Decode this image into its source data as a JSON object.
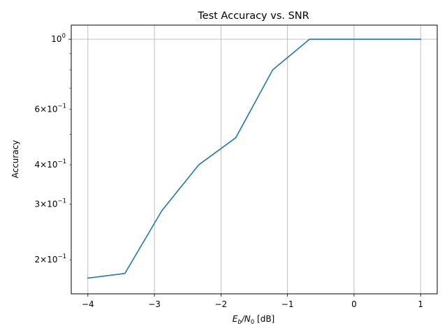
{
  "chart_data": {
    "type": "line",
    "title": "Test Accuracy vs. SNR",
    "xlabel": {
      "main": "E",
      "sub1": "b",
      "mid": "/N",
      "sub2": "0",
      "tail": " [dB]"
    },
    "ylabel": "Accuracy",
    "xscale": "linear",
    "yscale": "log",
    "xlim": [
      -4.25,
      1.25
    ],
    "ylim": [
      0.156,
      1.108
    ],
    "grid": "x-major-vertical, y-major-horizontal",
    "xticks": [
      {
        "value": -4,
        "label": "−4"
      },
      {
        "value": -3,
        "label": "−3"
      },
      {
        "value": -2,
        "label": "−2"
      },
      {
        "value": -1,
        "label": "−1"
      },
      {
        "value": 0,
        "label": "0"
      },
      {
        "value": 1,
        "label": "1"
      }
    ],
    "yticks_major": [
      {
        "value": 1.0,
        "base": "10",
        "exp": "0",
        "coef": ""
      }
    ],
    "yticks_minor_labeled": [
      {
        "value": 0.6,
        "coef": "6",
        "base": "10",
        "exp": "−1"
      },
      {
        "value": 0.4,
        "coef": "4",
        "base": "10",
        "exp": "−1"
      },
      {
        "value": 0.3,
        "coef": "3",
        "base": "10",
        "exp": "−1"
      },
      {
        "value": 0.2,
        "coef": "2",
        "base": "10",
        "exp": "−1"
      }
    ],
    "yticks_minor_unlabeled": [
      0.5,
      0.7,
      0.8,
      0.9
    ],
    "series": [
      {
        "color": "#1f77b4",
        "x": [
          -4.0,
          -3.444,
          -2.889,
          -2.333,
          -1.778,
          -1.222,
          -0.667,
          -0.111,
          0.444,
          1.0
        ],
        "y": [
          0.175,
          0.181,
          0.286,
          0.4,
          0.487,
          0.8,
          1.0,
          1.0,
          1.0,
          1.0
        ]
      }
    ]
  }
}
